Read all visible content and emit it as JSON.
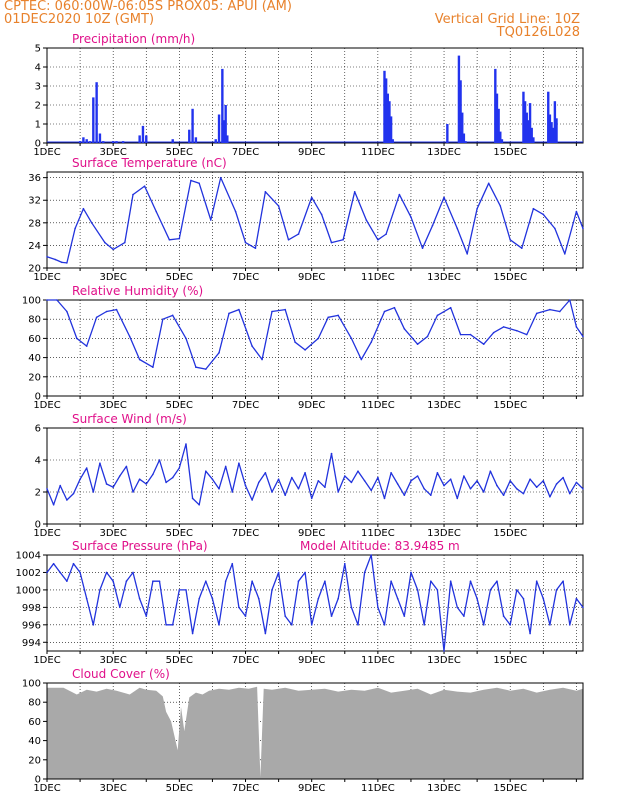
{
  "header": {
    "left_line1": "CPTEC:   060:00W-06:05S   PROX05: APUI (AM)",
    "left_line2": "01DEC2020 10Z (GMT)",
    "right_line1": "Vertical Grid Line: 10Z",
    "right_line2": "TQ0126L028"
  },
  "x_tick_labels": [
    "1DEC",
    "3DEC",
    "5DEC",
    "7DEC",
    "9DEC",
    "11DEC",
    "13DEC",
    "15DEC"
  ],
  "colors": {
    "line": "#2233dd",
    "bar": "#2233ee",
    "title": "#e0108a",
    "header": "#e8822c",
    "cloud": "#a9a9a9"
  },
  "chart_data": [
    {
      "type": "bar",
      "title": "Precipitation (mm/h)",
      "ylim": [
        0,
        5
      ],
      "yticks": [
        "0",
        "1",
        "2",
        "3",
        "4",
        "5"
      ],
      "x": [
        1.0,
        1.1,
        1.2,
        1.3,
        1.4,
        1.5,
        1.6,
        1.7,
        2.0,
        2.1,
        2.3,
        2.8,
        2.9,
        3.0,
        3.8,
        4.3,
        4.4,
        4.5,
        5.1,
        5.2,
        5.3,
        5.35,
        5.4,
        5.45,
        10.2,
        10.25,
        10.3,
        10.35,
        10.4,
        10.45,
        12.1,
        12.45,
        12.5,
        12.55,
        12.6,
        12.65,
        13.55,
        13.6,
        13.65,
        13.7,
        13.75,
        14.4,
        14.45,
        14.5,
        14.55,
        14.6,
        14.65,
        14.7,
        15.15,
        15.2,
        15.25,
        15.3,
        15.35,
        15.4
      ],
      "values": [
        0.1,
        0.3,
        0.2,
        0.1,
        2.4,
        3.2,
        0.5,
        0.1,
        0.1,
        0.1,
        0.1,
        0.4,
        0.9,
        0.4,
        0.2,
        0.7,
        1.8,
        0.3,
        0.2,
        1.5,
        3.9,
        1.2,
        2.0,
        0.4,
        3.8,
        3.4,
        2.6,
        2.2,
        1.4,
        0.2,
        1.0,
        4.6,
        3.3,
        1.6,
        0.5,
        0.1,
        3.9,
        2.6,
        1.8,
        0.6,
        0.2,
        2.7,
        2.2,
        1.6,
        1.2,
        2.1,
        0.8,
        0.3,
        2.7,
        1.5,
        1.1,
        0.8,
        2.2,
        1.3
      ]
    },
    {
      "type": "line",
      "title": "Surface Temperature (nC)",
      "ylim": [
        20,
        37
      ],
      "yticks": [
        "20",
        "24",
        "28",
        "32",
        "36"
      ],
      "x": [
        0.0,
        0.25,
        0.45,
        0.6,
        0.85,
        1.1,
        1.35,
        1.75,
        2.0,
        2.35,
        2.6,
        2.95,
        3.3,
        3.7,
        4.0,
        4.35,
        4.6,
        4.95,
        5.25,
        5.7,
        6.0,
        6.3,
        6.6,
        7.0,
        7.3,
        7.6,
        8.0,
        8.3,
        8.6,
        8.95,
        9.3,
        9.65,
        10.0,
        10.25,
        10.65,
        11.0,
        11.35,
        11.65,
        12.0,
        12.4,
        12.7,
        13.0,
        13.35,
        13.7,
        14.0,
        14.35,
        14.7,
        15.0,
        15.35,
        15.65,
        16.0,
        16.2
      ],
      "values": [
        22.0,
        21.5,
        21.0,
        20.9,
        27.0,
        30.5,
        28.0,
        24.5,
        23.3,
        24.5,
        33.0,
        34.5,
        30.0,
        25.0,
        25.2,
        35.5,
        35.0,
        28.5,
        36.0,
        30.0,
        24.5,
        23.5,
        33.5,
        31.0,
        25.0,
        26.0,
        32.5,
        29.5,
        24.5,
        25.0,
        33.5,
        28.5,
        25.0,
        26.0,
        33.0,
        29.0,
        23.5,
        27.5,
        32.5,
        27.0,
        22.5,
        30.5,
        35.0,
        31.0,
        25.0,
        23.5,
        30.5,
        29.5,
        27.0,
        22.5,
        30.0,
        27.0
      ]
    },
    {
      "type": "line",
      "title": "Relative Humidity (%)",
      "ylim": [
        0,
        100
      ],
      "yticks": [
        "0",
        "20",
        "40",
        "60",
        "80",
        "100"
      ],
      "x": [
        0.0,
        0.3,
        0.6,
        0.9,
        1.2,
        1.5,
        1.8,
        2.1,
        2.5,
        2.8,
        3.2,
        3.5,
        3.8,
        4.2,
        4.5,
        4.8,
        5.2,
        5.5,
        5.8,
        6.2,
        6.5,
        6.8,
        7.2,
        7.5,
        7.8,
        8.2,
        8.5,
        8.8,
        9.2,
        9.5,
        9.8,
        10.2,
        10.5,
        10.8,
        11.2,
        11.5,
        11.8,
        12.2,
        12.5,
        12.8,
        13.2,
        13.5,
        13.8,
        14.2,
        14.5,
        14.8,
        15.2,
        15.5,
        15.8,
        16.0,
        16.2
      ],
      "values": [
        100,
        100,
        88,
        60,
        52,
        82,
        88,
        90,
        62,
        38,
        30,
        80,
        84,
        60,
        30,
        28,
        45,
        86,
        90,
        52,
        38,
        88,
        90,
        56,
        48,
        60,
        82,
        84,
        60,
        38,
        56,
        88,
        92,
        70,
        54,
        62,
        84,
        92,
        64,
        64,
        54,
        66,
        72,
        68,
        64,
        86,
        90,
        88,
        100,
        72,
        62
      ]
    },
    {
      "type": "line",
      "title": "Surface Wind (m/s)",
      "ylim": [
        0,
        6
      ],
      "yticks": [
        "0",
        "2",
        "4",
        "6"
      ],
      "x": [
        0.0,
        0.2,
        0.4,
        0.6,
        0.8,
        1.0,
        1.2,
        1.4,
        1.6,
        1.8,
        2.0,
        2.2,
        2.4,
        2.6,
        2.8,
        3.0,
        3.2,
        3.4,
        3.6,
        3.8,
        4.0,
        4.2,
        4.4,
        4.6,
        4.8,
        5.0,
        5.2,
        5.4,
        5.6,
        5.8,
        6.0,
        6.2,
        6.4,
        6.6,
        6.8,
        7.0,
        7.2,
        7.4,
        7.6,
        7.8,
        8.0,
        8.2,
        8.4,
        8.6,
        8.8,
        9.0,
        9.2,
        9.4,
        9.6,
        9.8,
        10.0,
        10.2,
        10.4,
        10.6,
        10.8,
        11.0,
        11.2,
        11.4,
        11.6,
        11.8,
        12.0,
        12.2,
        12.4,
        12.6,
        12.8,
        13.0,
        13.2,
        13.4,
        13.6,
        13.8,
        14.0,
        14.2,
        14.4,
        14.6,
        14.8,
        15.0,
        15.2,
        15.4,
        15.6,
        15.8,
        16.0,
        16.2
      ],
      "values": [
        2.2,
        1.2,
        2.4,
        1.5,
        1.9,
        2.8,
        3.5,
        2.0,
        3.8,
        2.5,
        2.3,
        3.0,
        3.6,
        2.0,
        2.8,
        2.5,
        3.1,
        4.0,
        2.6,
        2.9,
        3.5,
        5.0,
        1.6,
        1.2,
        3.3,
        2.8,
        2.2,
        3.6,
        2.0,
        3.8,
        2.4,
        1.5,
        2.6,
        3.2,
        2.0,
        2.8,
        1.8,
        2.9,
        2.2,
        3.2,
        1.6,
        2.7,
        2.3,
        4.4,
        2.0,
        3.0,
        2.6,
        3.3,
        2.7,
        2.1,
        2.9,
        1.6,
        3.2,
        2.5,
        1.8,
        2.7,
        3.0,
        2.2,
        1.8,
        3.2,
        2.4,
        2.8,
        1.6,
        3.0,
        2.2,
        2.7,
        2.0,
        3.3,
        2.4,
        1.8,
        2.7,
        2.2,
        1.9,
        2.8,
        2.3,
        2.7,
        1.7,
        2.5,
        2.9,
        1.9,
        2.6,
        2.2
      ]
    },
    {
      "type": "line",
      "title": "Surface Pressure (hPa)",
      "annotation": "Model Altitude: 83.9485  m",
      "ylim": [
        993,
        1004
      ],
      "yticks": [
        "994",
        "996",
        "998",
        "1000",
        "1002",
        "1004"
      ],
      "x": [
        0.0,
        0.2,
        0.4,
        0.6,
        0.8,
        1.0,
        1.2,
        1.4,
        1.6,
        1.8,
        2.0,
        2.2,
        2.4,
        2.6,
        2.8,
        3.0,
        3.2,
        3.4,
        3.6,
        3.8,
        4.0,
        4.2,
        4.4,
        4.6,
        4.8,
        5.0,
        5.2,
        5.4,
        5.6,
        5.8,
        6.0,
        6.2,
        6.4,
        6.6,
        6.8,
        7.0,
        7.2,
        7.4,
        7.6,
        7.8,
        8.0,
        8.2,
        8.4,
        8.6,
        8.8,
        9.0,
        9.2,
        9.4,
        9.6,
        9.8,
        10.0,
        10.2,
        10.4,
        10.6,
        10.8,
        11.0,
        11.2,
        11.4,
        11.6,
        11.8,
        12.0,
        12.2,
        12.4,
        12.6,
        12.8,
        13.0,
        13.2,
        13.4,
        13.6,
        13.8,
        14.0,
        14.2,
        14.4,
        14.6,
        14.8,
        15.0,
        15.2,
        15.4,
        15.6,
        15.8,
        16.0,
        16.2
      ],
      "values": [
        1002,
        1003,
        1002,
        1001,
        1003,
        1002,
        999,
        996,
        1000,
        1002,
        1001,
        998,
        1001,
        1002,
        999,
        997,
        1001,
        1001,
        996,
        996,
        1000,
        1000,
        995,
        999,
        1001,
        999,
        996,
        1001,
        1003,
        998,
        997,
        1001,
        999,
        995,
        1000,
        1002,
        997,
        996,
        1001,
        1002,
        996,
        999,
        1001,
        997,
        999,
        1003,
        998,
        996,
        1002,
        1004,
        998,
        996,
        1001,
        999,
        997,
        1002,
        1000,
        996,
        1001,
        1000,
        993,
        1001,
        998,
        997,
        1001,
        999,
        996,
        1000,
        1001,
        997,
        996,
        1000,
        999,
        995,
        1001,
        999,
        996,
        1000,
        1001,
        996,
        999,
        998
      ]
    },
    {
      "type": "area",
      "title": "Cloud Cover (%)",
      "ylim": [
        0,
        100
      ],
      "yticks": [
        "0",
        "20",
        "40",
        "60",
        "80",
        "100"
      ],
      "x": [
        0.0,
        0.5,
        0.9,
        1.2,
        1.5,
        1.8,
        2.1,
        2.5,
        2.8,
        3.0,
        3.3,
        3.5,
        3.6,
        3.75,
        3.85,
        3.95,
        4.05,
        4.15,
        4.3,
        4.5,
        4.7,
        4.9,
        5.2,
        5.5,
        5.8,
        6.1,
        6.35,
        6.45,
        6.55,
        6.8,
        7.2,
        7.6,
        8.0,
        8.4,
        8.8,
        9.2,
        9.6,
        10.0,
        10.4,
        10.8,
        11.2,
        11.6,
        12.0,
        12.4,
        12.8,
        13.2,
        13.6,
        14.0,
        14.4,
        14.8,
        15.2,
        15.6,
        16.0,
        16.2
      ],
      "values": [
        95,
        95,
        88,
        93,
        91,
        94,
        92,
        88,
        95,
        93,
        92,
        86,
        70,
        60,
        45,
        30,
        75,
        50,
        85,
        90,
        88,
        92,
        94,
        93,
        95,
        94,
        96,
        2,
        94,
        93,
        95,
        92,
        93,
        94,
        91,
        93,
        92,
        95,
        90,
        92,
        94,
        88,
        93,
        91,
        90,
        93,
        95,
        92,
        94,
        90,
        93,
        95,
        92,
        94
      ]
    }
  ]
}
